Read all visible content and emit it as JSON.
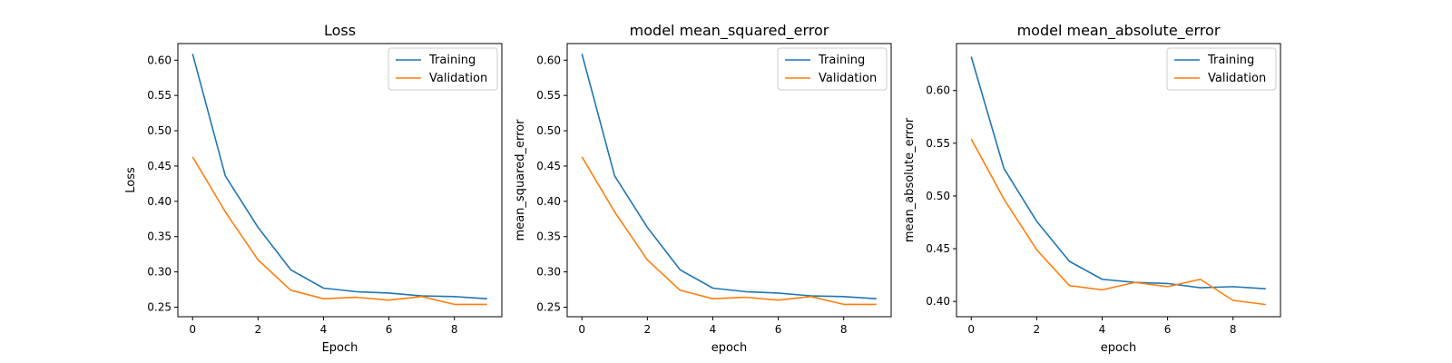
{
  "colors": {
    "training": "#1f77b4",
    "validation": "#ff7f0e",
    "axis": "#000000",
    "background": "#ffffff"
  },
  "chart_data": [
    {
      "type": "line",
      "title": "Loss",
      "xlabel": "Epoch",
      "ylabel": "Loss",
      "xlim": [
        -0.45,
        9.45
      ],
      "ylim": [
        0.2365,
        0.6235
      ],
      "xticks": [
        0,
        2,
        4,
        6,
        8
      ],
      "xtick_labels": [
        "0",
        "2",
        "4",
        "6",
        "8"
      ],
      "yticks": [
        0.25,
        0.3,
        0.35,
        0.4,
        0.45,
        0.5,
        0.55,
        0.6
      ],
      "ytick_labels": [
        "0.25",
        "0.30",
        "0.35",
        "0.40",
        "0.45",
        "0.50",
        "0.55",
        "0.60"
      ],
      "legend": {
        "position": "top-right",
        "entries": [
          "Training",
          "Validation"
        ]
      },
      "x": [
        0,
        1,
        2,
        3,
        4,
        5,
        6,
        7,
        8,
        9
      ],
      "series": [
        {
          "name": "Training",
          "values": [
            0.609,
            0.436,
            0.363,
            0.303,
            0.277,
            0.272,
            0.27,
            0.266,
            0.265,
            0.262
          ]
        },
        {
          "name": "Validation",
          "values": [
            0.463,
            0.385,
            0.317,
            0.274,
            0.262,
            0.264,
            0.26,
            0.265,
            0.254,
            0.254
          ]
        }
      ]
    },
    {
      "type": "line",
      "title": "model mean_squared_error",
      "xlabel": "epoch",
      "ylabel": "mean_squared_error",
      "xlim": [
        -0.45,
        9.45
      ],
      "ylim": [
        0.2365,
        0.6235
      ],
      "xticks": [
        0,
        2,
        4,
        6,
        8
      ],
      "xtick_labels": [
        "0",
        "2",
        "4",
        "6",
        "8"
      ],
      "yticks": [
        0.25,
        0.3,
        0.35,
        0.4,
        0.45,
        0.5,
        0.55,
        0.6
      ],
      "ytick_labels": [
        "0.25",
        "0.30",
        "0.35",
        "0.40",
        "0.45",
        "0.50",
        "0.55",
        "0.60"
      ],
      "legend": {
        "position": "top-right",
        "entries": [
          "Training",
          "Validation"
        ]
      },
      "x": [
        0,
        1,
        2,
        3,
        4,
        5,
        6,
        7,
        8,
        9
      ],
      "series": [
        {
          "name": "Training",
          "values": [
            0.609,
            0.436,
            0.363,
            0.303,
            0.277,
            0.272,
            0.27,
            0.266,
            0.265,
            0.262
          ]
        },
        {
          "name": "Validation",
          "values": [
            0.463,
            0.385,
            0.317,
            0.274,
            0.262,
            0.264,
            0.26,
            0.265,
            0.254,
            0.254
          ]
        }
      ]
    },
    {
      "type": "line",
      "title": "model mean_absolute_error",
      "xlabel": "epoch",
      "ylabel": "mean_absolute_error",
      "xlim": [
        -0.45,
        9.45
      ],
      "ylim": [
        0.3855,
        0.6445
      ],
      "xticks": [
        0,
        2,
        4,
        6,
        8
      ],
      "xtick_labels": [
        "0",
        "2",
        "4",
        "6",
        "8"
      ],
      "yticks": [
        0.4,
        0.45,
        0.5,
        0.55,
        0.6
      ],
      "ytick_labels": [
        "0.40",
        "0.45",
        "0.50",
        "0.55",
        "0.60"
      ],
      "legend": {
        "position": "top-right",
        "entries": [
          "Training",
          "Validation"
        ]
      },
      "x": [
        0,
        1,
        2,
        3,
        4,
        5,
        6,
        7,
        8,
        9
      ],
      "series": [
        {
          "name": "Training",
          "values": [
            0.632,
            0.526,
            0.476,
            0.438,
            0.421,
            0.418,
            0.417,
            0.413,
            0.414,
            0.412
          ]
        },
        {
          "name": "Validation",
          "values": [
            0.554,
            0.497,
            0.449,
            0.415,
            0.411,
            0.418,
            0.414,
            0.421,
            0.401,
            0.397
          ]
        }
      ]
    }
  ]
}
